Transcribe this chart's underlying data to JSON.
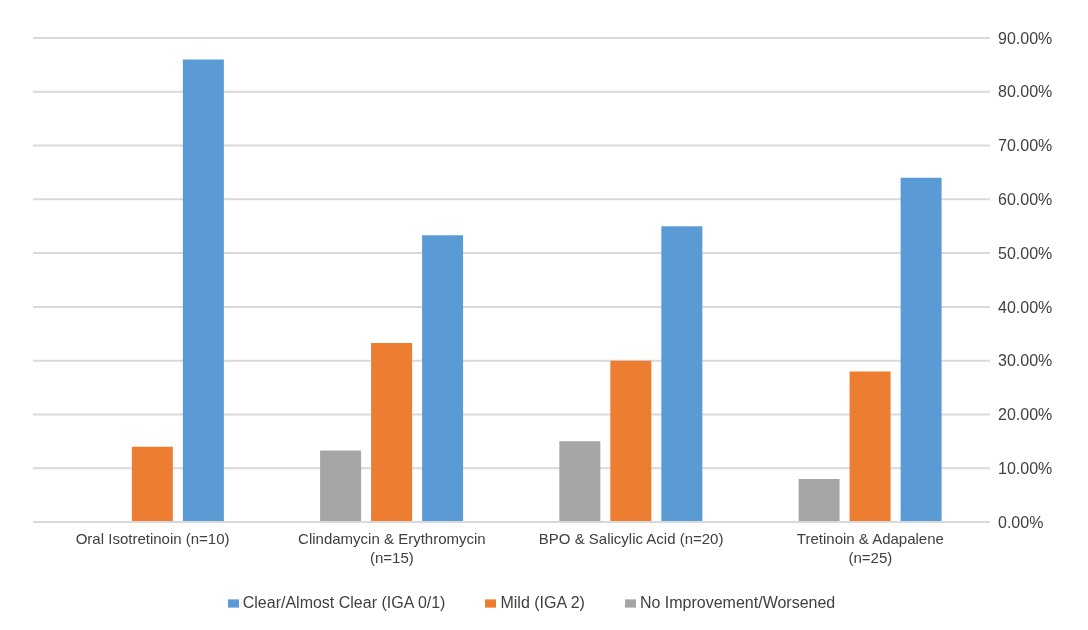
{
  "chart_data": {
    "type": "bar",
    "categories": [
      "Oral Isotretinoin (n=10)",
      "Clindamycin & Erythromycin (n=15)",
      "BPO & Salicylic Acid (n=20)",
      "Tretinoin & Adapalene (n=25)"
    ],
    "series": [
      {
        "name": "No Improvement/Worsened",
        "color": "#a5a5a5",
        "values": [
          0,
          13.3,
          15,
          8
        ]
      },
      {
        "name": "Mild (IGA 2)",
        "color": "#ed7d31",
        "values": [
          14,
          33.3,
          30,
          28
        ]
      },
      {
        "name": "Clear/Almost Clear (IGA 0/1)",
        "color": "#5b9bd5",
        "values": [
          86,
          53.3,
          55,
          64
        ]
      }
    ],
    "ylim": [
      0,
      90
    ],
    "yticks": [
      {
        "value": 0,
        "label": "0.00%"
      },
      {
        "value": 10,
        "label": "10.00%"
      },
      {
        "value": 20,
        "label": "20.00%"
      },
      {
        "value": 30,
        "label": "30.00%"
      },
      {
        "value": 40,
        "label": "40.00%"
      },
      {
        "value": 50,
        "label": "50.00%"
      },
      {
        "value": 60,
        "label": "60.00%"
      },
      {
        "value": 70,
        "label": "70.00%"
      },
      {
        "value": 80,
        "label": "80.00%"
      },
      {
        "value": 90,
        "label": "90.00%"
      }
    ],
    "grid": "y",
    "legend": "bottom"
  }
}
